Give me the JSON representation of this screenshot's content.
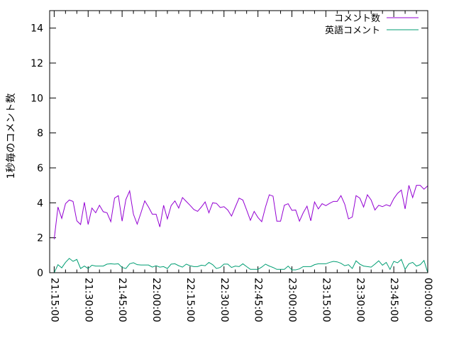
{
  "chart_data": {
    "type": "line",
    "title": "",
    "xlabel": "",
    "ylabel": "1秒毎のコメント数",
    "xlim": [
      "21:13:00",
      "00:00:00"
    ],
    "ylim": [
      0,
      15
    ],
    "grid": false,
    "legend_position": "top-right",
    "x_ticks": [
      "21:15:00",
      "21:30:00",
      "21:45:00",
      "22:00:00",
      "22:15:00",
      "22:30:00",
      "22:45:00",
      "23:00:00",
      "23:15:00",
      "23:30:00",
      "23:45:00",
      "00:00:00"
    ],
    "y_ticks": [
      "0",
      "2",
      "4",
      "6",
      "8",
      "10",
      "12",
      "14"
    ],
    "x": [
      "21:15:00",
      "21:16:40",
      "21:18:20",
      "21:20:00",
      "21:21:40",
      "21:23:20",
      "21:25:00",
      "21:26:40",
      "21:28:20",
      "21:30:00",
      "21:31:40",
      "21:33:20",
      "21:35:00",
      "21:36:40",
      "21:38:20",
      "21:40:00",
      "21:41:40",
      "21:43:20",
      "21:45:00",
      "21:46:40",
      "21:48:20",
      "21:50:00",
      "21:51:40",
      "21:53:20",
      "21:55:00",
      "21:56:40",
      "21:58:20",
      "22:00:00",
      "22:01:40",
      "22:03:20",
      "22:05:00",
      "22:06:40",
      "22:08:20",
      "22:10:00",
      "22:11:40",
      "22:13:20",
      "22:15:00",
      "22:16:40",
      "22:18:20",
      "22:20:00",
      "22:21:40",
      "22:23:20",
      "22:25:00",
      "22:26:40",
      "22:28:20",
      "22:30:00",
      "22:31:40",
      "22:33:20",
      "22:35:00",
      "22:36:40",
      "22:38:20",
      "22:40:00",
      "22:41:40",
      "22:43:20",
      "22:45:00",
      "22:46:40",
      "22:48:20",
      "22:50:00",
      "22:51:40",
      "22:53:20",
      "22:55:00",
      "22:56:40",
      "22:58:20",
      "23:00:00",
      "23:01:40",
      "23:03:20",
      "23:05:00",
      "23:06:40",
      "23:08:20",
      "23:10:00",
      "23:11:40",
      "23:13:20",
      "23:15:00",
      "23:16:40",
      "23:18:20",
      "23:20:00",
      "23:21:40",
      "23:23:20",
      "23:25:00",
      "23:26:40",
      "23:28:20",
      "23:30:00",
      "23:31:40",
      "23:33:20",
      "23:35:00",
      "23:36:40",
      "23:38:20",
      "23:40:00",
      "23:41:40",
      "23:43:20",
      "23:45:00",
      "23:46:40",
      "23:48:20",
      "23:50:00",
      "23:51:40",
      "23:53:20",
      "23:55:00",
      "23:56:40",
      "23:58:20",
      "00:00:00"
    ],
    "series": [
      {
        "name": "コメント数",
        "color": "#9400d3",
        "values": [
          1.92,
          3.76,
          3.11,
          3.95,
          4.16,
          4.08,
          2.97,
          2.76,
          4.03,
          2.76,
          3.7,
          3.43,
          3.86,
          3.49,
          3.43,
          2.92,
          4.27,
          4.41,
          2.95,
          4.19,
          4.68,
          3.35,
          2.78,
          3.43,
          4.11,
          3.76,
          3.35,
          3.35,
          2.62,
          3.86,
          3.08,
          3.84,
          4.11,
          3.7,
          4.3,
          4.08,
          3.86,
          3.62,
          3.51,
          3.76,
          4.05,
          3.43,
          4.0,
          3.97,
          3.73,
          3.78,
          3.59,
          3.24,
          3.76,
          4.27,
          4.16,
          3.59,
          3.0,
          3.51,
          3.16,
          2.92,
          3.76,
          4.46,
          4.38,
          2.95,
          2.95,
          3.86,
          3.95,
          3.57,
          3.59,
          2.95,
          3.43,
          3.81,
          2.97,
          4.05,
          3.65,
          3.95,
          3.84,
          3.97,
          4.08,
          4.08,
          4.41,
          3.92,
          3.08,
          3.19,
          4.41,
          4.27,
          3.76,
          4.46,
          4.16,
          3.59,
          3.86,
          3.78,
          3.89,
          3.81,
          4.24,
          4.54,
          4.73,
          3.65,
          5.0,
          4.3,
          5.0,
          5.0,
          4.78,
          4.97
        ]
      },
      {
        "name": "英語コメント",
        "color": "#009e73",
        "values": [
          0,
          0.46,
          0.28,
          0.59,
          0.82,
          0.65,
          0.76,
          0.24,
          0.38,
          0.24,
          0.43,
          0.38,
          0.38,
          0.38,
          0.49,
          0.51,
          0.49,
          0.51,
          0.3,
          0.24,
          0.51,
          0.57,
          0.46,
          0.44,
          0.44,
          0.44,
          0.32,
          0.4,
          0.32,
          0.35,
          0.24,
          0.49,
          0.51,
          0.4,
          0.32,
          0.49,
          0.4,
          0.35,
          0.35,
          0.43,
          0.4,
          0.59,
          0.46,
          0.24,
          0.3,
          0.49,
          0.49,
          0.3,
          0.38,
          0.35,
          0.51,
          0.35,
          0.19,
          0.19,
          0.19,
          0.32,
          0.49,
          0.38,
          0.3,
          0.19,
          0.19,
          0.19,
          0.38,
          0.16,
          0.16,
          0.22,
          0.35,
          0.35,
          0.35,
          0.46,
          0.51,
          0.51,
          0.51,
          0.59,
          0.65,
          0.62,
          0.54,
          0.4,
          0.46,
          0.24,
          0.68,
          0.49,
          0.38,
          0.35,
          0.32,
          0.49,
          0.68,
          0.43,
          0.59,
          0.19,
          0.65,
          0.57,
          0.76,
          0.19,
          0.51,
          0.59,
          0.38,
          0.46,
          0.7,
          0
        ]
      }
    ]
  }
}
